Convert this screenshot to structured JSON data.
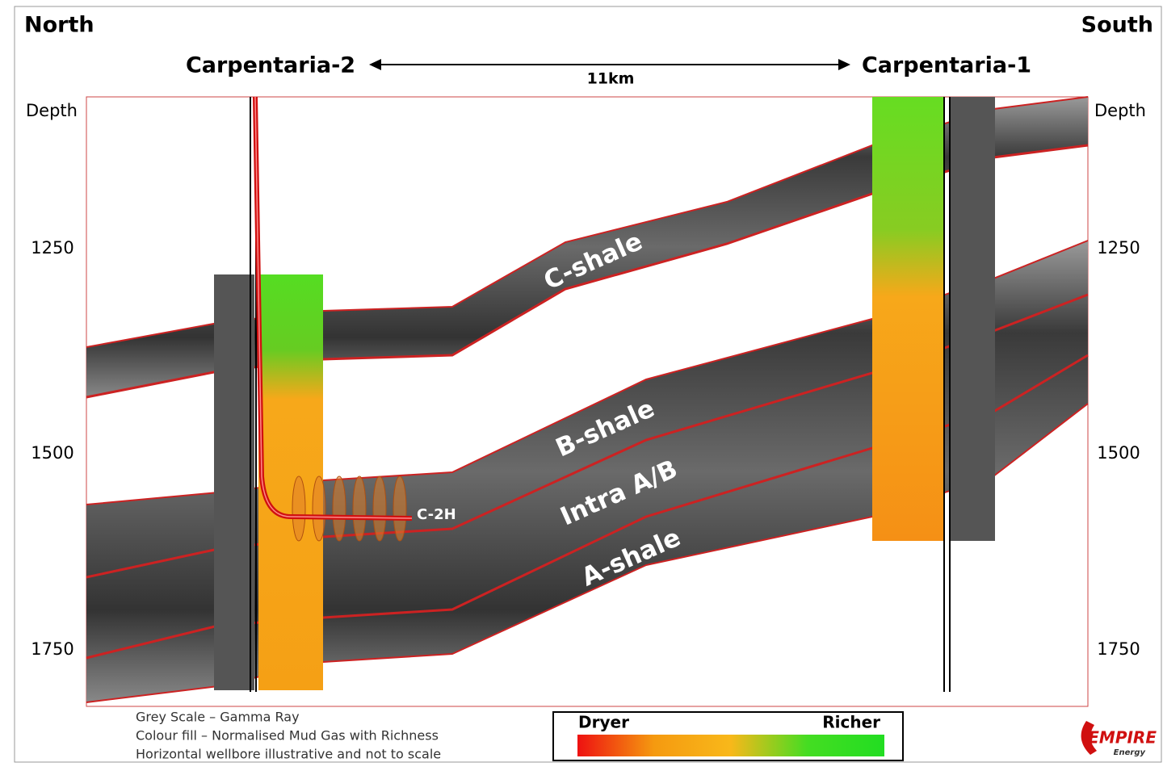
{
  "header": {
    "left": "North",
    "right": "South"
  },
  "wells": {
    "left": "Carpentaria-2",
    "right": "Carpentaria-1",
    "distance": "11km"
  },
  "axis": {
    "left_title": "Depth",
    "right_title": "Depth",
    "ticks": [
      1250,
      1500,
      1750
    ]
  },
  "layers": {
    "c": "C-shale",
    "b": "B-shale",
    "ab": "Intra A/B",
    "a": "A-shale"
  },
  "well_label": "C-2H",
  "legend": {
    "notes": [
      "Grey Scale – Gamma Ray",
      "Colour fill – Normalised Mud Gas with Richness",
      "Horizontal wellbore illustrative and not to scale"
    ],
    "dryer": "Dryer",
    "richer": "Richer"
  },
  "logo": {
    "name": "EMPIRE",
    "sub": "Energy"
  }
}
